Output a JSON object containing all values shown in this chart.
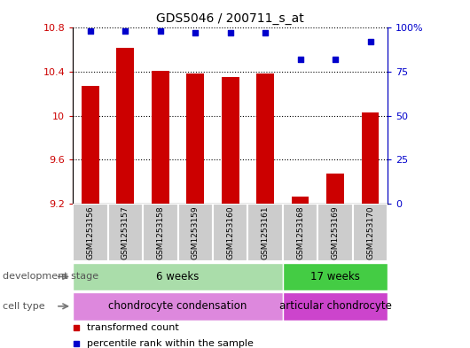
{
  "title": "GDS5046 / 200711_s_at",
  "samples": [
    "GSM1253156",
    "GSM1253157",
    "GSM1253158",
    "GSM1253159",
    "GSM1253160",
    "GSM1253161",
    "GSM1253168",
    "GSM1253169",
    "GSM1253170"
  ],
  "bar_values": [
    10.27,
    10.62,
    10.41,
    10.385,
    10.355,
    10.385,
    9.26,
    9.47,
    10.03
  ],
  "bar_base": 9.2,
  "percentile_values": [
    98,
    98,
    98,
    97,
    97,
    97,
    82,
    82,
    92
  ],
  "ylim_left": [
    9.2,
    10.8
  ],
  "yticks_left": [
    9.2,
    9.6,
    10.0,
    10.4,
    10.8
  ],
  "yticklabels_left": [
    "9.2",
    "9.6",
    "10",
    "10.4",
    "10.8"
  ],
  "ylim_right": [
    0,
    100
  ],
  "yticks_right": [
    0,
    25,
    50,
    75,
    100
  ],
  "yticklabels_right": [
    "0",
    "25",
    "50",
    "75",
    "100%"
  ],
  "bar_color": "#cc0000",
  "percentile_color": "#0000cc",
  "grid_color": "#000000",
  "development_stages": [
    {
      "label": "6 weeks",
      "start": 0,
      "end": 6,
      "color": "#aaddaa"
    },
    {
      "label": "17 weeks",
      "start": 6,
      "end": 9,
      "color": "#44cc44"
    }
  ],
  "cell_types": [
    {
      "label": "chondrocyte condensation",
      "start": 0,
      "end": 6,
      "color": "#dd88dd"
    },
    {
      "label": "articular chondrocyte",
      "start": 6,
      "end": 9,
      "color": "#cc44cc"
    }
  ],
  "label_dev_stage": "development stage",
  "label_cell_type": "cell type",
  "legend_bar_label": "transformed count",
  "legend_pct_label": "percentile rank within the sample",
  "tick_label_color_left": "#cc0000",
  "tick_label_color_right": "#0000cc",
  "background_color": "#ffffff",
  "panel_color": "#cccccc",
  "panel_border_color": "#aaaaaa"
}
